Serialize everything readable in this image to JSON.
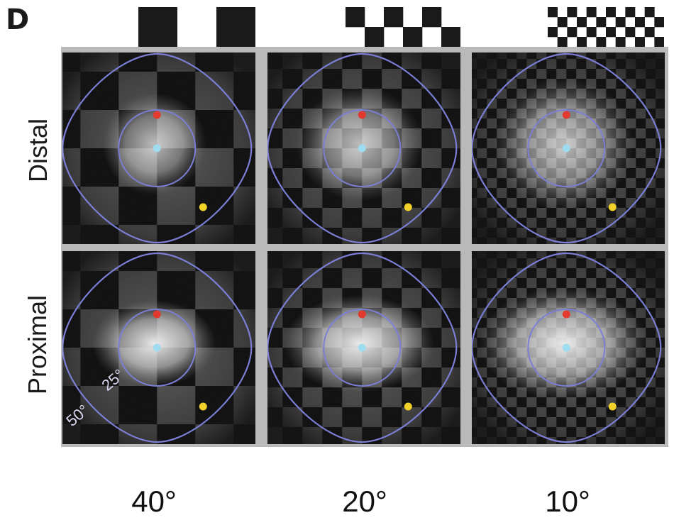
{
  "panel_label": "D",
  "row_labels": [
    "Distal",
    "Proximal"
  ],
  "column_labels": [
    "40°",
    "20°",
    "10°"
  ],
  "ring_labels": {
    "inner": "25°",
    "outer": "50°"
  },
  "colors": {
    "contour": "#7b7fd6",
    "marker_center": "#9fdcf0",
    "marker_top": "#e23a2e",
    "marker_lower_right": "#f2d12a"
  },
  "cells": [
    {
      "row": "Distal",
      "column": "40°"
    },
    {
      "row": "Distal",
      "column": "20°"
    },
    {
      "row": "Distal",
      "column": "10°"
    },
    {
      "row": "Proximal",
      "column": "40°"
    },
    {
      "row": "Proximal",
      "column": "20°"
    },
    {
      "row": "Proximal",
      "column": "10°"
    }
  ]
}
